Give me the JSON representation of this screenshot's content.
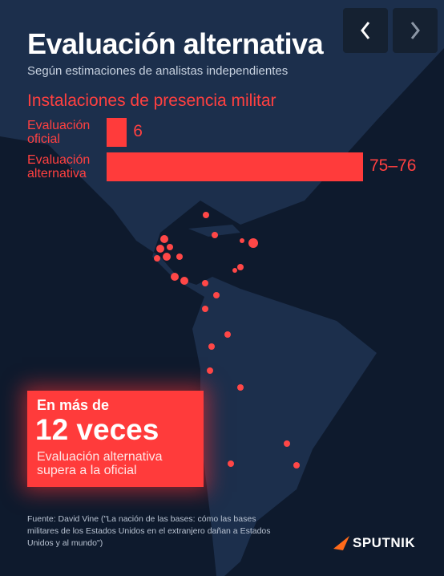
{
  "header": {
    "title": "Evaluación alternativa",
    "subtitle": "Según estimaciones de analistas independientes"
  },
  "chart_data": {
    "type": "bar",
    "orientation": "horizontal",
    "title": "Instalaciones de presencia militar",
    "categories": [
      "Evaluación oficial",
      "Evaluación alternativa"
    ],
    "values": [
      6,
      76
    ],
    "value_labels": [
      "6",
      "75–76"
    ],
    "color": "#ff3b3b"
  },
  "callout": {
    "lead": "En más de",
    "headline": "12 veces",
    "text": "Evaluación alternativa supera a la oficial"
  },
  "source": "Fuente: David Vine (\"La nación de las bases: cómo las bases militares de los Estados Unidos en el extranjero dañan a Estados Unidos y al mundo\")",
  "brand": "SPUTNIK"
}
